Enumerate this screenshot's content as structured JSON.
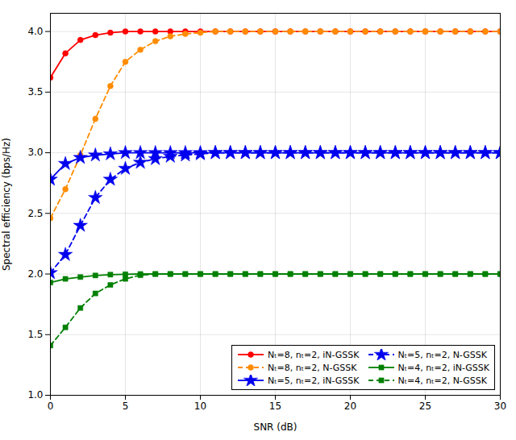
{
  "chart_data": {
    "type": "line",
    "xlabel": "SNR (dB)",
    "ylabel": "Spectral efficiency (bps/Hz)",
    "x": [
      0,
      1,
      2,
      3,
      4,
      5,
      6,
      7,
      8,
      9,
      10,
      11,
      12,
      13,
      14,
      15,
      16,
      17,
      18,
      19,
      20,
      21,
      22,
      23,
      24,
      25,
      26,
      27,
      28,
      29,
      30
    ],
    "series": [
      {
        "name": "Nₜ=8, nₜ=2, iN-GSSK",
        "color": "#ff0000",
        "line_style": "solid",
        "marker": "circle",
        "values": [
          3.62,
          3.82,
          3.93,
          3.97,
          3.99,
          4.0,
          4.0,
          4.0,
          4.0,
          4.0,
          4.0,
          4.0,
          4.0,
          4.0,
          4.0,
          4.0,
          4.0,
          4.0,
          4.0,
          4.0,
          4.0,
          4.0,
          4.0,
          4.0,
          4.0,
          4.0,
          4.0,
          4.0,
          4.0,
          4.0,
          4.0
        ]
      },
      {
        "name": "Nₜ=8, nₜ=2, N-GSSK",
        "color": "#ff8c00",
        "line_style": "dashed",
        "marker": "circle",
        "values": [
          2.46,
          2.7,
          2.98,
          3.28,
          3.55,
          3.75,
          3.85,
          3.92,
          3.96,
          3.98,
          3.99,
          4.0,
          4.0,
          4.0,
          4.0,
          4.0,
          4.0,
          4.0,
          4.0,
          4.0,
          4.0,
          4.0,
          4.0,
          4.0,
          4.0,
          4.0,
          4.0,
          4.0,
          4.0,
          4.0,
          4.0
        ]
      },
      {
        "name": "Nₜ=5, nₜ=2, iN-GSSK",
        "color": "#0000ee",
        "line_style": "solid",
        "marker": "star",
        "values": [
          2.78,
          2.91,
          2.96,
          2.98,
          2.99,
          3.0,
          3.0,
          3.0,
          3.0,
          3.0,
          3.0,
          3.0,
          3.0,
          3.0,
          3.0,
          3.0,
          3.0,
          3.0,
          3.0,
          3.0,
          3.0,
          3.0,
          3.0,
          3.0,
          3.0,
          3.0,
          3.0,
          3.0,
          3.0,
          3.0,
          3.0
        ]
      },
      {
        "name": "Nₜ=5, nₜ=2, N-GSSK",
        "color": "#0000ee",
        "line_style": "dashed",
        "marker": "star",
        "values": [
          2.01,
          2.16,
          2.4,
          2.63,
          2.78,
          2.87,
          2.92,
          2.95,
          2.97,
          2.98,
          2.99,
          3.0,
          3.0,
          3.0,
          3.0,
          3.0,
          3.0,
          3.0,
          3.0,
          3.0,
          3.0,
          3.0,
          3.0,
          3.0,
          3.0,
          3.0,
          3.0,
          3.0,
          3.0,
          3.0,
          3.0
        ]
      },
      {
        "name": "Nₜ=4, nₜ=2, iN-GSSK",
        "color": "#008000",
        "line_style": "solid",
        "marker": "square",
        "values": [
          1.93,
          1.96,
          1.975,
          1.988,
          1.995,
          1.998,
          2.0,
          2.0,
          2.0,
          2.0,
          2.0,
          2.0,
          2.0,
          2.0,
          2.0,
          2.0,
          2.0,
          2.0,
          2.0,
          2.0,
          2.0,
          2.0,
          2.0,
          2.0,
          2.0,
          2.0,
          2.0,
          2.0,
          2.0,
          2.0,
          2.0
        ]
      },
      {
        "name": "Nₜ=4, nₜ=2, N-GSSK",
        "color": "#008000",
        "line_style": "dashed",
        "marker": "square",
        "values": [
          1.41,
          1.56,
          1.72,
          1.84,
          1.91,
          1.96,
          1.99,
          2.0,
          2.0,
          2.0,
          2.0,
          2.0,
          2.0,
          2.0,
          2.0,
          2.0,
          2.0,
          2.0,
          2.0,
          2.0,
          2.0,
          2.0,
          2.0,
          2.0,
          2.0,
          2.0,
          2.0,
          2.0,
          2.0,
          2.0,
          2.0
        ]
      }
    ],
    "xlim": [
      0,
      30
    ],
    "xticks": [
      0,
      5,
      10,
      15,
      20,
      25,
      30
    ],
    "ylim": [
      1.0,
      4.15
    ],
    "yticks": [
      {
        "value": 1,
        "label": "1.0"
      },
      1.5,
      {
        "value": 2,
        "label": "2.0"
      },
      2.5,
      {
        "value": 3,
        "label": "3.0"
      },
      3.5,
      {
        "value": 4,
        "label": "4.0"
      }
    ],
    "grid": true,
    "legend": "lower right"
  }
}
